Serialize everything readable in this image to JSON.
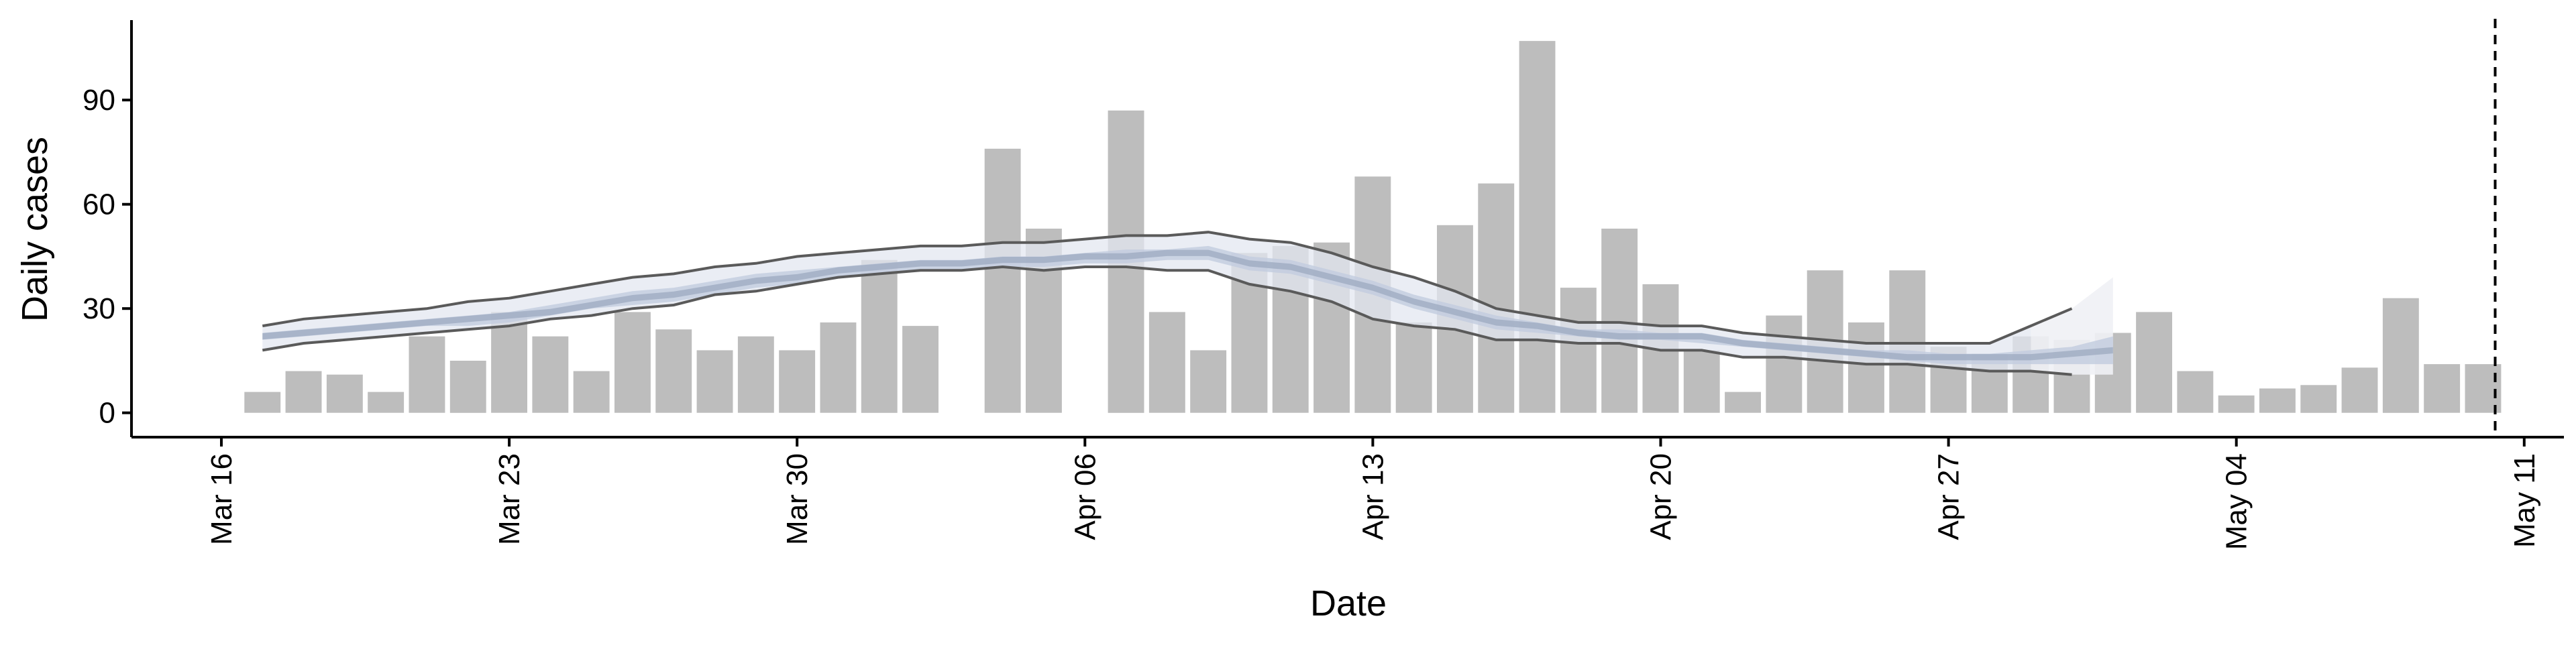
{
  "chart_data": {
    "type": "bar",
    "title": "",
    "xlabel": "Date",
    "ylabel": "Daily cases",
    "ylim": [
      -7,
      113
    ],
    "xlim": [
      "2020-03-14",
      "2020-05-12"
    ],
    "grid": false,
    "legend": "none",
    "y_ticks": [
      0,
      30,
      60,
      90
    ],
    "x_ticks": [
      {
        "date": "2020-03-16",
        "label": "Mar 16"
      },
      {
        "date": "2020-03-23",
        "label": "Mar 23"
      },
      {
        "date": "2020-03-30",
        "label": "Mar 30"
      },
      {
        "date": "2020-04-06",
        "label": "Apr 06"
      },
      {
        "date": "2020-04-13",
        "label": "Apr 13"
      },
      {
        "date": "2020-04-20",
        "label": "Apr 20"
      },
      {
        "date": "2020-04-27",
        "label": "Apr 27"
      },
      {
        "date": "2020-05-04",
        "label": "May 04"
      },
      {
        "date": "2020-05-11",
        "label": "May 11"
      }
    ],
    "daily_cases": {
      "dates": [
        "2020-03-17",
        "2020-03-18",
        "2020-03-19",
        "2020-03-20",
        "2020-03-21",
        "2020-03-22",
        "2020-03-23",
        "2020-03-24",
        "2020-03-25",
        "2020-03-26",
        "2020-03-27",
        "2020-03-28",
        "2020-03-29",
        "2020-03-30",
        "2020-03-31",
        "2020-04-01",
        "2020-04-02",
        "2020-04-04",
        "2020-04-05",
        "2020-04-07",
        "2020-04-08",
        "2020-04-09",
        "2020-04-10",
        "2020-04-11",
        "2020-04-12",
        "2020-04-13",
        "2020-04-14",
        "2020-04-15",
        "2020-04-16",
        "2020-04-17",
        "2020-04-18",
        "2020-04-19",
        "2020-04-20",
        "2020-04-21",
        "2020-04-22",
        "2020-04-23",
        "2020-04-24",
        "2020-04-25",
        "2020-04-26",
        "2020-04-27",
        "2020-04-28",
        "2020-04-29",
        "2020-04-30",
        "2020-05-01",
        "2020-05-02",
        "2020-05-03",
        "2020-05-04",
        "2020-05-05",
        "2020-05-06",
        "2020-05-07",
        "2020-05-08",
        "2020-05-09",
        "2020-05-10"
      ],
      "values": [
        6,
        12,
        11,
        6,
        22,
        15,
        29,
        22,
        12,
        29,
        24,
        18,
        22,
        18,
        26,
        44,
        25,
        76,
        53,
        87,
        29,
        18,
        46,
        48,
        49,
        68,
        26,
        54,
        66,
        107,
        36,
        53,
        37,
        18,
        6,
        28,
        41,
        26,
        41,
        19,
        17,
        22,
        21,
        23,
        29,
        12,
        5,
        7,
        8,
        13,
        33,
        14,
        14
      ]
    },
    "fitted": {
      "dates": [
        "2020-03-17",
        "2020-03-18",
        "2020-03-19",
        "2020-03-20",
        "2020-03-21",
        "2020-03-22",
        "2020-03-23",
        "2020-03-24",
        "2020-03-25",
        "2020-03-26",
        "2020-03-27",
        "2020-03-28",
        "2020-03-29",
        "2020-03-30",
        "2020-03-31",
        "2020-04-01",
        "2020-04-02",
        "2020-04-03",
        "2020-04-04",
        "2020-04-05",
        "2020-04-06",
        "2020-04-07",
        "2020-04-08",
        "2020-04-09",
        "2020-04-10",
        "2020-04-11",
        "2020-04-12",
        "2020-04-13",
        "2020-04-14",
        "2020-04-15",
        "2020-04-16",
        "2020-04-17",
        "2020-04-18",
        "2020-04-19",
        "2020-04-20",
        "2020-04-21",
        "2020-04-22",
        "2020-04-23",
        "2020-04-24",
        "2020-04-25",
        "2020-04-26",
        "2020-04-27",
        "2020-04-28",
        "2020-04-29",
        "2020-04-30",
        "2020-05-01"
      ],
      "upper_90": [
        25,
        27,
        28,
        29,
        30,
        32,
        33,
        35,
        37,
        39,
        40,
        42,
        43,
        45,
        46,
        47,
        48,
        48,
        49,
        49,
        50,
        51,
        51,
        52,
        50,
        49,
        46,
        42,
        39,
        35,
        30,
        28,
        26,
        26,
        25,
        25,
        23,
        22,
        21,
        20,
        20,
        20,
        20,
        25,
        30,
        39
      ],
      "upper_50": [
        23,
        24,
        25,
        26,
        27,
        28,
        29,
        31,
        33,
        35,
        36,
        38,
        40,
        41,
        42,
        43,
        44,
        44,
        45,
        45,
        46,
        47,
        47,
        48,
        45,
        44,
        41,
        38,
        34,
        31,
        28,
        26,
        24,
        24,
        23,
        23,
        21,
        20,
        19,
        18,
        18,
        17,
        17,
        18,
        19,
        22
      ],
      "median": [
        22,
        23,
        24,
        25,
        26,
        27,
        28,
        29,
        31,
        33,
        34,
        36,
        38,
        39,
        41,
        42,
        43,
        43,
        44,
        44,
        45,
        45,
        46,
        46,
        43,
        42,
        39,
        36,
        32,
        29,
        26,
        25,
        23,
        22,
        22,
        22,
        20,
        19,
        18,
        17,
        16,
        16,
        16,
        16,
        17,
        18
      ],
      "lower_50": [
        21,
        22,
        23,
        24,
        25,
        25,
        26,
        28,
        30,
        31,
        32,
        34,
        36,
        37,
        39,
        40,
        41,
        41,
        42,
        42,
        43,
        43,
        44,
        44,
        41,
        40,
        37,
        34,
        30,
        27,
        24,
        23,
        22,
        21,
        21,
        20,
        19,
        18,
        17,
        16,
        15,
        14,
        14,
        14,
        14,
        14
      ],
      "lower_90": [
        18,
        20,
        21,
        22,
        23,
        24,
        25,
        27,
        28,
        30,
        31,
        34,
        35,
        37,
        39,
        40,
        41,
        41,
        42,
        41,
        42,
        42,
        41,
        41,
        37,
        35,
        32,
        27,
        25,
        24,
        21,
        21,
        20,
        20,
        18,
        18,
        16,
        16,
        15,
        14,
        14,
        13,
        12,
        12,
        11,
        11
      ]
    },
    "forecast_start": "2020-04-29",
    "vline_date": "2020-05-10",
    "colors": {
      "bars": "#bdbdbd",
      "band_90": "#e3e7f0",
      "band_50": "#c2ccde",
      "median_band": "#9aa6be",
      "forecast_band": "#f0f1f5",
      "ci_lines": "#5a5a5a",
      "vline": "#000000"
    }
  }
}
